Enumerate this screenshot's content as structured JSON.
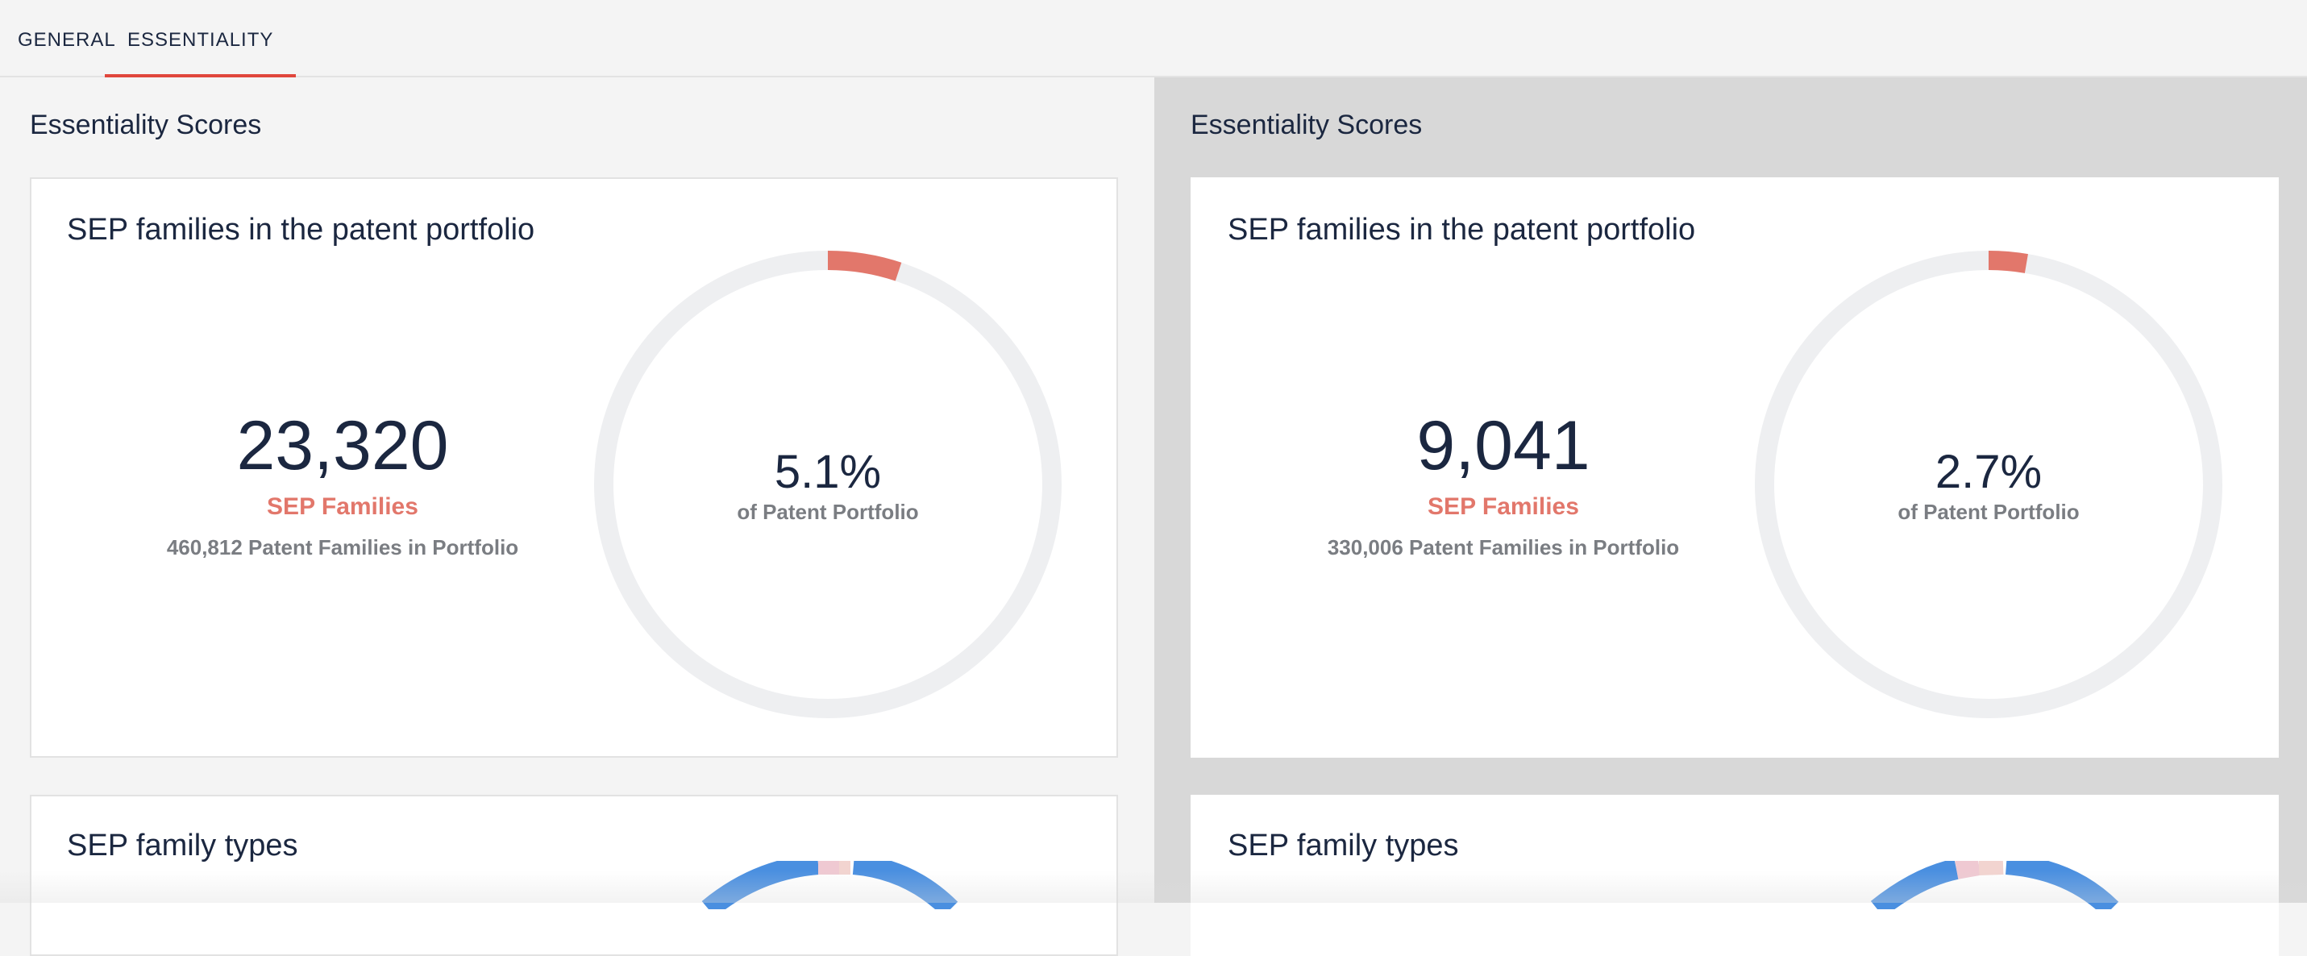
{
  "tabs": [
    {
      "label": "GENERAL",
      "active": false
    },
    {
      "label": "ESSENTIALITY",
      "active": true
    }
  ],
  "colors": {
    "accent": "#e0463c",
    "sep_coral": "#e2776b",
    "ring_grey": "#eeeff1",
    "blue": "#4a8fe0",
    "pink": "#efc9d2"
  },
  "panels": [
    {
      "section_title": "Essentiality Scores",
      "card1": {
        "title": "SEP families in the patent portfolio",
        "count": "23,320",
        "count_label": "SEP Families",
        "portfolio": "460,812 Patent Families in Portfolio",
        "percent": "5.1%",
        "percent_label": "of Patent Portfolio",
        "ratio": 0.051
      },
      "card2": {
        "title": "SEP family types"
      }
    },
    {
      "section_title": "Essentiality Scores",
      "card1": {
        "title": "SEP families in the patent portfolio",
        "count": "9,041",
        "count_label": "SEP Families",
        "portfolio": "330,006 Patent Families in Portfolio",
        "percent": "2.7%",
        "percent_label": "of Patent Portfolio",
        "ratio": 0.027
      },
      "card2": {
        "title": "SEP family types"
      }
    }
  ]
}
